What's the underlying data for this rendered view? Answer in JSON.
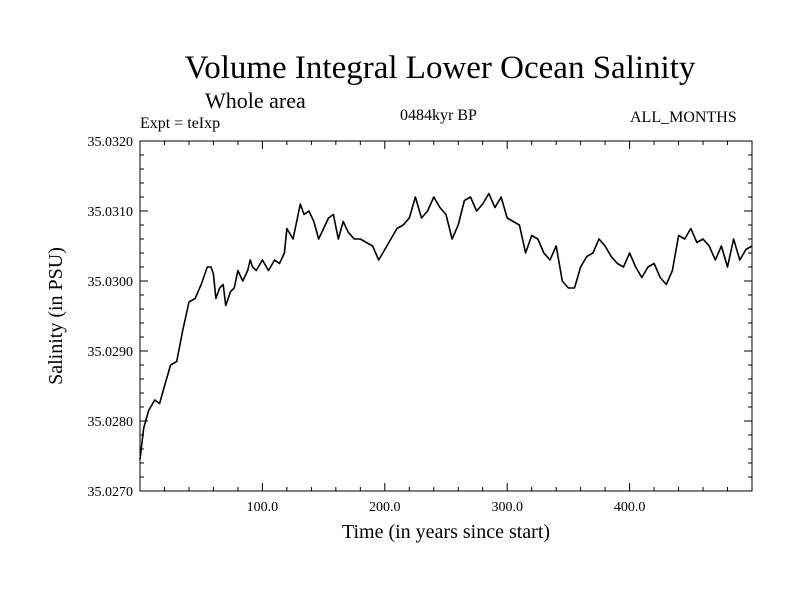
{
  "chart_data": {
    "type": "line",
    "title": "Volume Integral Lower Ocean Salinity",
    "subtitle": "Whole area",
    "experiment": "Expt = teIxp",
    "period": "0484kyr BP",
    "months": "ALL_MONTHS",
    "xlabel": "Time (in years since start)",
    "ylabel": "Salinity (in PSU)",
    "xlim": [
      0,
      500
    ],
    "ylim": [
      35.027,
      35.032
    ],
    "x_ticks": [
      100,
      200,
      300,
      400
    ],
    "x_tick_labels": [
      "100.0",
      "200.0",
      "300.0",
      "400.0"
    ],
    "y_ticks": [
      35.027,
      35.028,
      35.029,
      35.03,
      35.031,
      35.032
    ],
    "y_tick_labels": [
      "35.0270",
      "35.0280",
      "35.0290",
      "35.0300",
      "35.0310",
      "35.0320"
    ],
    "series": [
      {
        "name": "Salinity",
        "x": [
          0,
          3,
          7,
          12,
          16,
          20,
          25,
          30,
          35,
          40,
          45,
          50,
          55,
          58,
          60,
          62,
          65,
          68,
          70,
          74,
          77,
          80,
          84,
          88,
          90,
          92,
          95,
          100,
          105,
          110,
          114,
          118,
          120,
          125,
          128,
          131,
          134,
          138,
          142,
          146,
          150,
          154,
          158,
          162,
          166,
          170,
          175,
          180,
          185,
          190,
          195,
          200,
          205,
          210,
          215,
          220,
          225,
          230,
          235,
          240,
          245,
          250,
          255,
          260,
          265,
          270,
          275,
          280,
          285,
          290,
          295,
          300,
          305,
          310,
          315,
          320,
          325,
          330,
          335,
          340,
          345,
          350,
          355,
          360,
          365,
          370,
          375,
          380,
          385,
          390,
          395,
          400,
          405,
          410,
          415,
          420,
          425,
          430,
          435,
          440,
          445,
          450,
          455,
          460,
          465,
          470,
          475,
          480,
          485,
          490,
          495,
          500
        ],
        "values": [
          35.02745,
          35.0279,
          35.02815,
          35.0283,
          35.02825,
          35.0285,
          35.0288,
          35.02885,
          35.0293,
          35.0297,
          35.02975,
          35.02995,
          35.0302,
          35.0302,
          35.0301,
          35.02975,
          35.0299,
          35.02995,
          35.02965,
          35.02985,
          35.0299,
          35.03015,
          35.03,
          35.03015,
          35.0303,
          35.0302,
          35.03015,
          35.0303,
          35.03015,
          35.0303,
          35.03025,
          35.0304,
          35.03075,
          35.0306,
          35.03085,
          35.0311,
          35.03095,
          35.031,
          35.03085,
          35.0306,
          35.03075,
          35.0309,
          35.03095,
          35.0306,
          35.03085,
          35.0307,
          35.0306,
          35.0306,
          35.03055,
          35.0305,
          35.0303,
          35.03045,
          35.0306,
          35.03075,
          35.0308,
          35.0309,
          35.0312,
          35.0309,
          35.031,
          35.0312,
          35.03105,
          35.03095,
          35.0306,
          35.0308,
          35.03115,
          35.0312,
          35.031,
          35.0311,
          35.03125,
          35.03105,
          35.0312,
          35.0309,
          35.03085,
          35.0308,
          35.0304,
          35.03065,
          35.0306,
          35.0304,
          35.0303,
          35.0305,
          35.03,
          35.0299,
          35.0299,
          35.0302,
          35.03035,
          35.0304,
          35.0306,
          35.0305,
          35.03035,
          35.03025,
          35.0302,
          35.0304,
          35.0302,
          35.03005,
          35.0302,
          35.03025,
          35.03005,
          35.02995,
          35.03015,
          35.03065,
          35.0306,
          35.03075,
          35.03055,
          35.0306,
          35.0305,
          35.0303,
          35.0305,
          35.0302,
          35.0306,
          35.0303,
          35.03045,
          35.0305
        ]
      }
    ]
  }
}
